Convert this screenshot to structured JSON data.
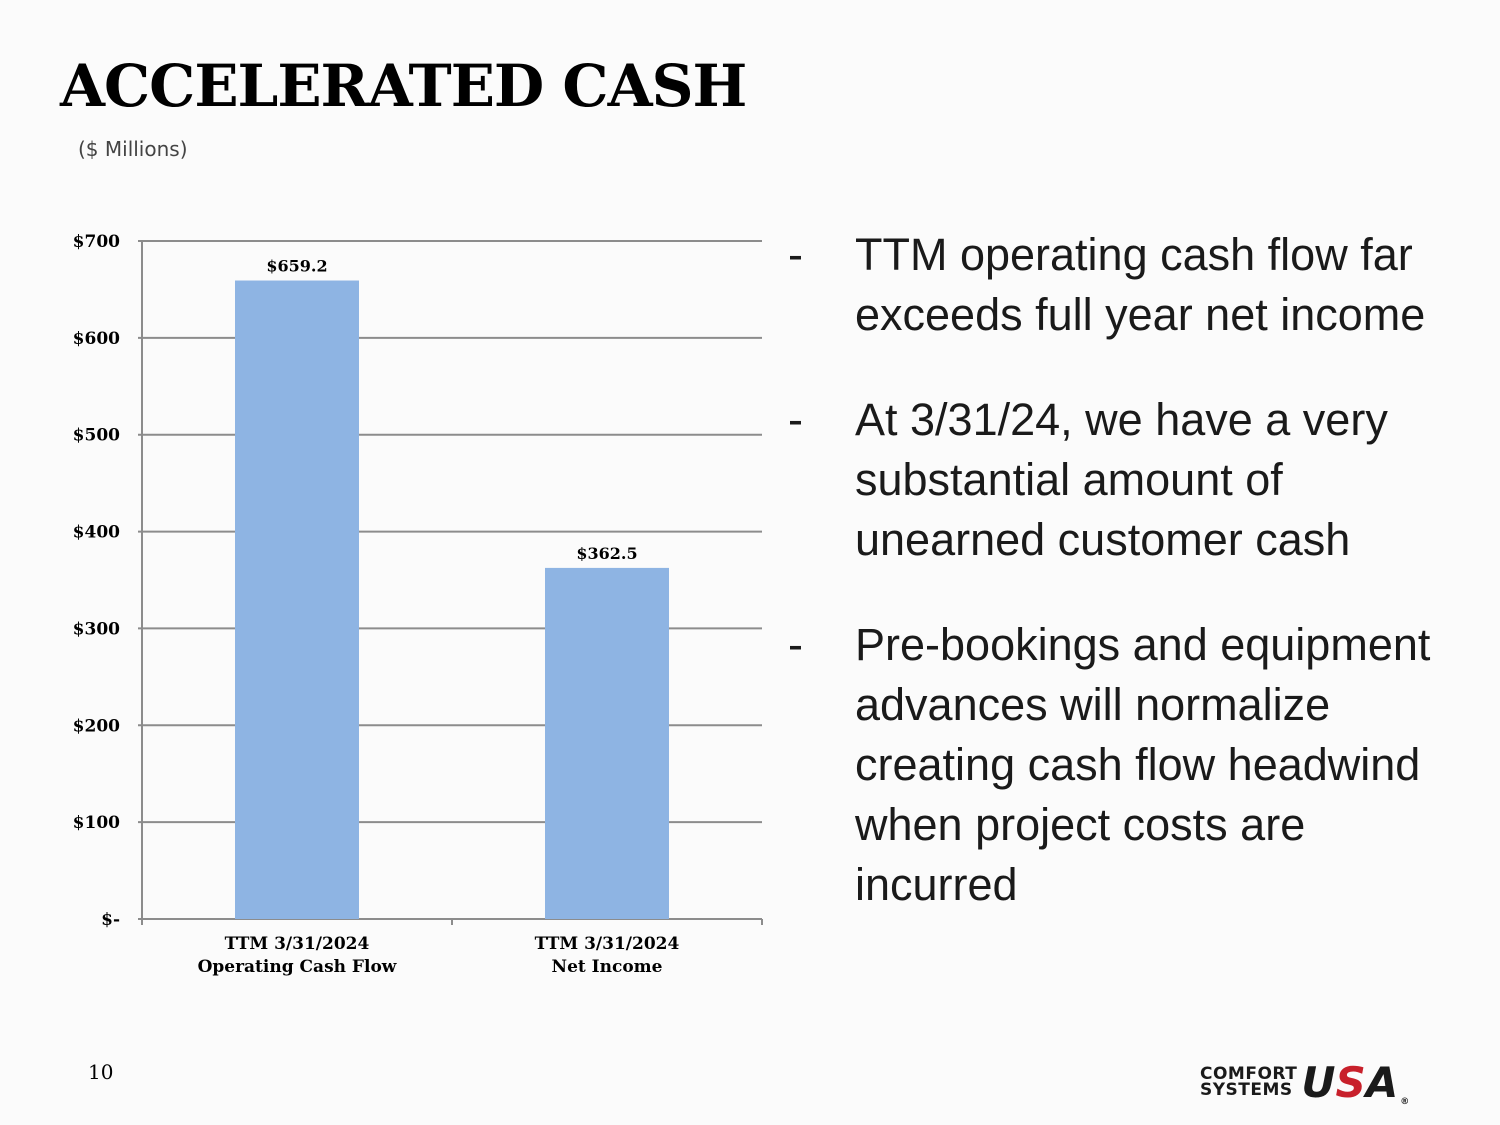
{
  "slide": {
    "title": "ACCELERATED CASH",
    "subtitle": "($ Millions)",
    "page_number": "10"
  },
  "bullets": [
    {
      "marker": "-",
      "text": "TTM operating cash flow far exceeds full year net income"
    },
    {
      "marker": "-",
      "text": "At 3/31/24, we have a very substantial amount of unearned customer cash"
    },
    {
      "marker": "-",
      "text": "Pre-bookings and equipment advances will normalize creating cash flow headwind when project costs are incurred"
    }
  ],
  "logo": {
    "line1": "COMFORT",
    "line2": "SYSTEMS",
    "mark_u": "U",
    "mark_s": "S",
    "mark_a": "A",
    "registered": "®"
  },
  "chart_data": {
    "type": "bar",
    "categories": [
      [
        "TTM 3/31/2024",
        "Operating Cash Flow"
      ],
      [
        "TTM 3/31/2024",
        "Net Income"
      ]
    ],
    "values": [
      659.2,
      362.5
    ],
    "data_labels": [
      "$659.2",
      "$362.5"
    ],
    "yticks": [
      0,
      100,
      200,
      300,
      400,
      500,
      600,
      700
    ],
    "ytick_labels": [
      "$-",
      "$100",
      "$200",
      "$300",
      "$400",
      "$500",
      "$600",
      "$700"
    ],
    "ylim": [
      0,
      700
    ],
    "grid": true,
    "bar_color": "#8eb4e3",
    "grid_color": "#8c8c8c",
    "legend": "none"
  }
}
